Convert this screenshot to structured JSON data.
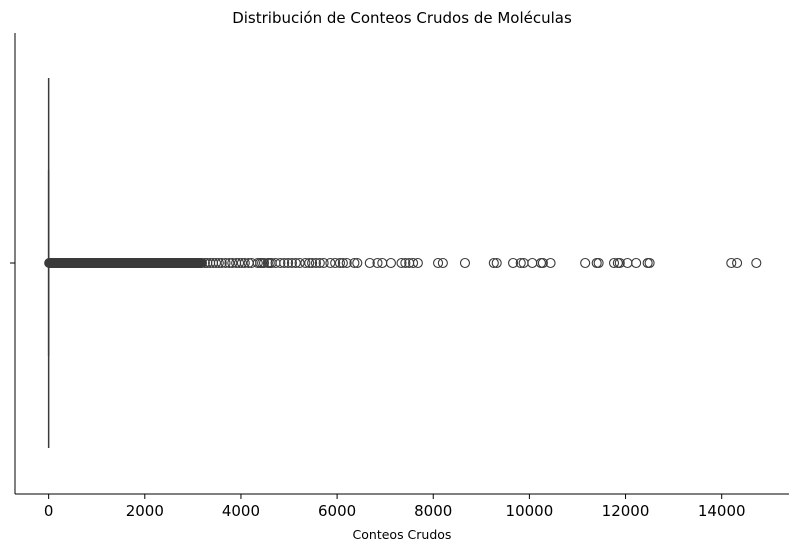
{
  "chart_data": {
    "type": "boxplot",
    "orientation": "horizontal",
    "title": "Distribución de Conteos Crudos de Moléculas",
    "xlabel": "Conteos Crudos",
    "ylabel": "",
    "xlim": [
      -700,
      15400
    ],
    "xticks": [
      0,
      2000,
      4000,
      6000,
      8000,
      10000,
      12000,
      14000
    ],
    "xtick_labels": [
      "0",
      "2000",
      "4000",
      "6000",
      "8000",
      "10000",
      "12000",
      "14000"
    ],
    "box": {
      "min": 0,
      "q1": 0,
      "median": 0,
      "q3": 1,
      "max": 2
    },
    "dense_outlier_range": [
      0,
      3200
    ],
    "outliers": [
      3250,
      3300,
      3360,
      3420,
      3480,
      3540,
      3600,
      3680,
      3760,
      3820,
      3900,
      3960,
      4020,
      4080,
      4160,
      4220,
      4350,
      4400,
      4440,
      4480,
      4560,
      4600,
      4640,
      4720,
      4820,
      4900,
      4980,
      5060,
      5140,
      5220,
      5340,
      5420,
      5480,
      5560,
      5640,
      5720,
      5860,
      5960,
      6060,
      6120,
      6200,
      6360,
      6420,
      6680,
      6840,
      6940,
      7120,
      7340,
      7420,
      7500,
      7580,
      7680,
      8100,
      8200,
      8660,
      9260,
      9320,
      9660,
      9820,
      9880,
      10060,
      10240,
      10280,
      10440,
      11160,
      11400,
      11440,
      11760,
      11840,
      11880,
      12040,
      12220,
      12460,
      12500,
      14200,
      14320,
      14720
    ],
    "grid": false,
    "spines": [
      "left",
      "bottom"
    ],
    "color": "#3a3a3a"
  }
}
